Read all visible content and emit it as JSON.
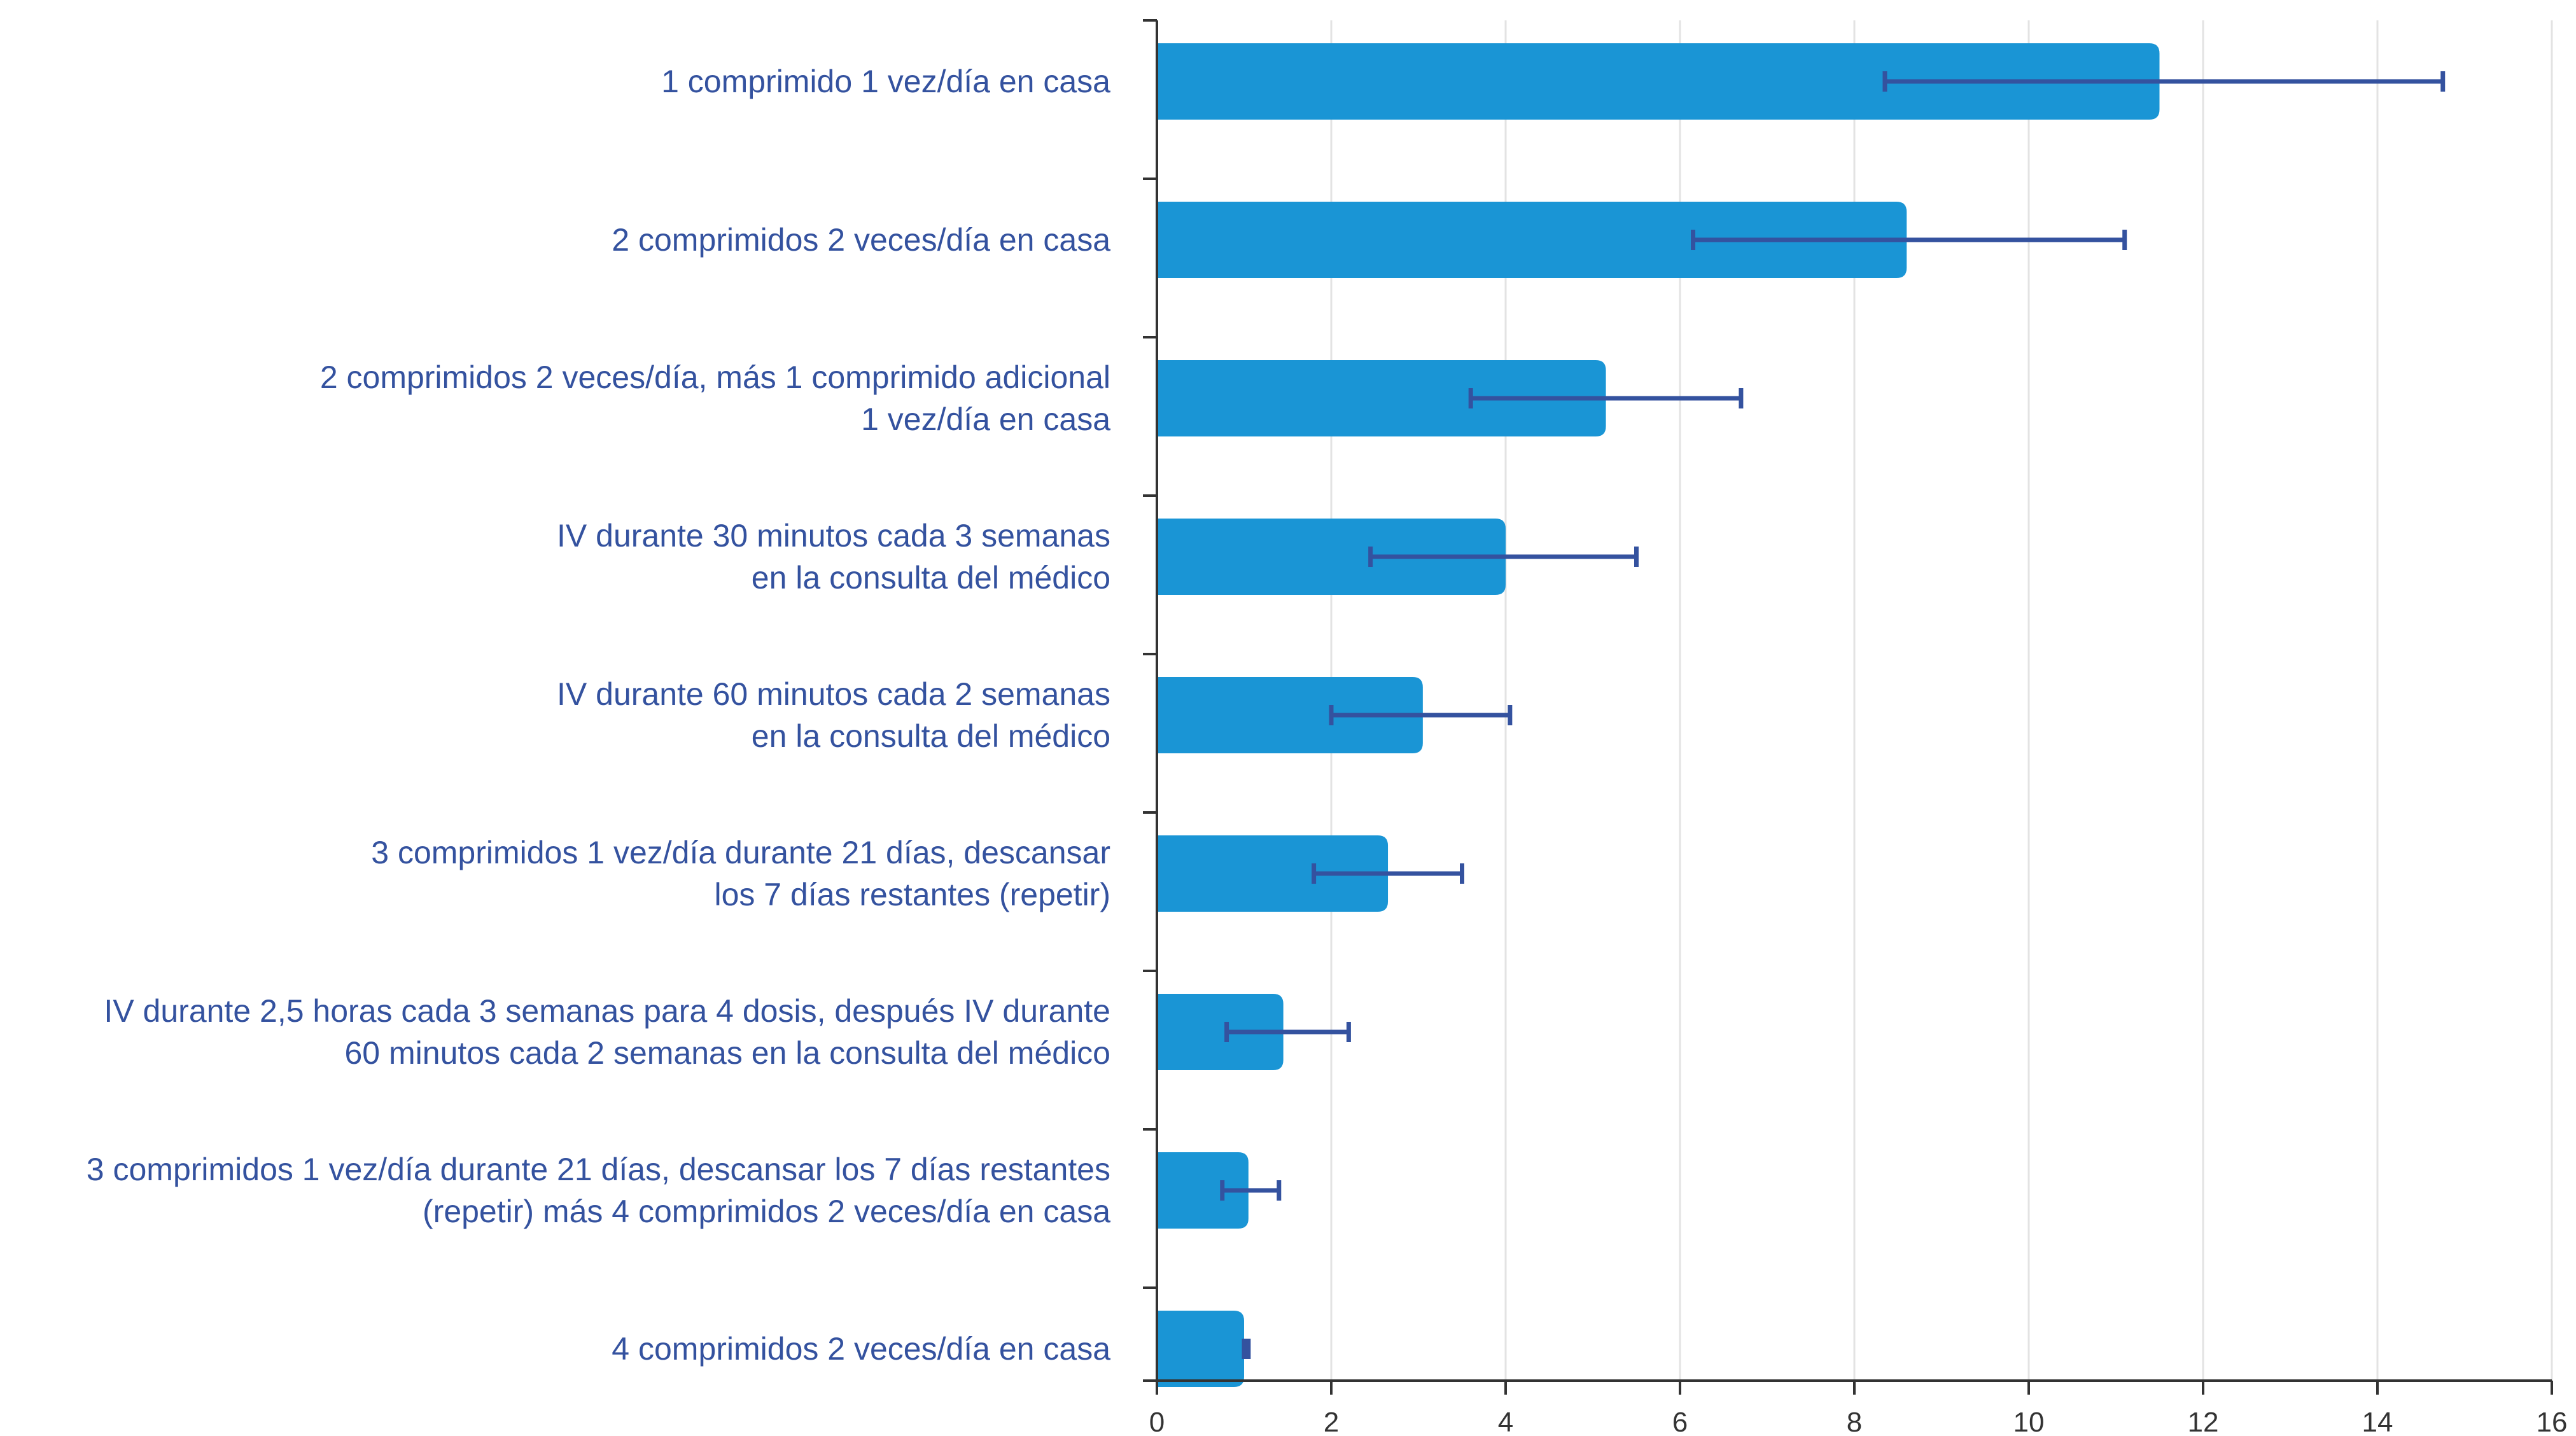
{
  "colors": {
    "bar": "#1a95d5",
    "error_bar": "#34529f",
    "label_text": "#34529f",
    "axis": "#333333",
    "grid": "#e3e3e3"
  },
  "chart_data": {
    "type": "bar",
    "orientation": "horizontal",
    "title": "",
    "xlabel": "",
    "ylabel": "",
    "xlim": [
      0,
      16
    ],
    "x_ticks": [
      0,
      2,
      4,
      6,
      8,
      10,
      12,
      14,
      16
    ],
    "grid": "vertical gridlines",
    "legend": "none",
    "categories": [
      [
        "1 comprimido 1 vez/día en casa"
      ],
      [
        "2 comprimidos 2 veces/día en casa"
      ],
      [
        "2 comprimidos 2 veces/día, más 1 comprimido adicional",
        "1 vez/día en casa"
      ],
      [
        "IV durante 30 minutos cada 3 semanas",
        "en la consulta del médico"
      ],
      [
        "IV durante 60 minutos cada 2 semanas",
        "en la consulta del médico"
      ],
      [
        "3 comprimidos 1 vez/día durante 21 días, descansar",
        "los 7 días restantes (repetir)"
      ],
      [
        "IV durante 2,5 horas cada 3 semanas para 4 dosis, después IV durante",
        "60 minutos cada 2 semanas en la consulta del médico"
      ],
      [
        "3 comprimidos 1 vez/día durante 21 días, descansar los 7 días restantes",
        "(repetir) más 4 comprimidos 2 veces/día en casa"
      ],
      [
        "4 comprimidos 2 veces/día en casa"
      ]
    ],
    "values": [
      11.5,
      8.6,
      5.15,
      4.0,
      3.05,
      2.65,
      1.45,
      1.05,
      1.0
    ],
    "error_low": [
      8.35,
      6.15,
      3.6,
      2.45,
      2.0,
      1.8,
      0.8,
      0.75,
      1.0
    ],
    "error_high": [
      14.75,
      11.1,
      6.7,
      5.5,
      4.05,
      3.5,
      2.2,
      1.4,
      1.05
    ]
  }
}
